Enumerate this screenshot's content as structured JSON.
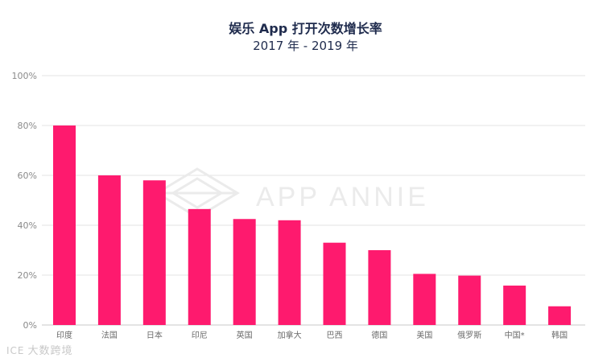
{
  "chart_data": {
    "type": "bar",
    "title": "娱乐 App 打开次数增长率",
    "subtitle": "2017 年 - 2019 年",
    "categories": [
      "印度",
      "法国",
      "日本",
      "印尼",
      "英国",
      "加拿大",
      "巴西",
      "德国",
      "美国",
      "俄罗斯",
      "中国*",
      "韩国"
    ],
    "values": [
      80,
      60,
      58,
      46.5,
      42.5,
      42,
      33,
      30,
      20.5,
      19.8,
      15.8,
      7.5
    ],
    "y_ticks": [
      "0%",
      "20%",
      "40%",
      "60%",
      "80%",
      "100%"
    ],
    "ylim": [
      0,
      100
    ],
    "bar_color": "#fe1a6e",
    "grid": true
  },
  "watermark": "APP ANNIE",
  "footer_logo": "大数跨境",
  "footer_mark": "ICE"
}
